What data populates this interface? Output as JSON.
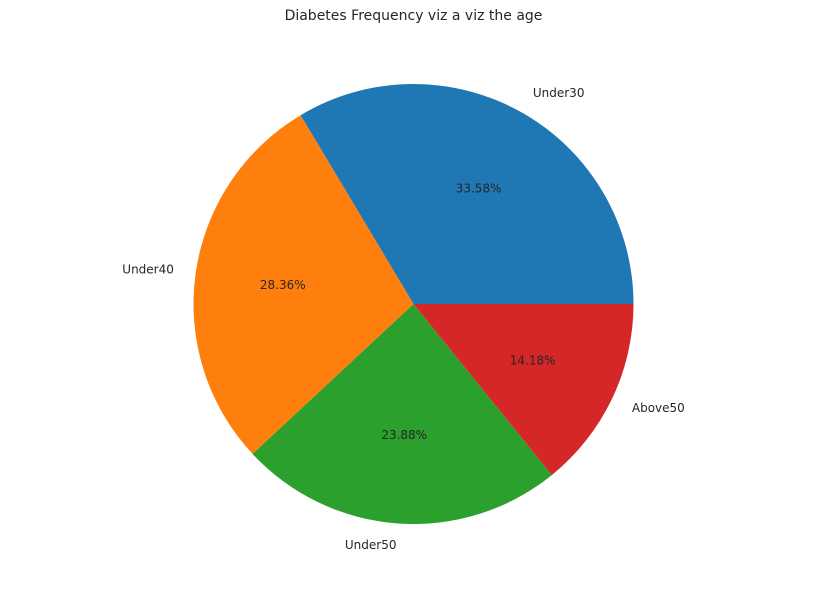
{
  "chart_data": {
    "type": "pie",
    "title": "Diabetes Frequency viz a viz the age",
    "categories": [
      "Under30",
      "Under40",
      "Under50",
      "Above50"
    ],
    "values": [
      33.58,
      28.36,
      23.88,
      14.18
    ],
    "labels": [
      "33.58%",
      "28.36%",
      "23.88%",
      "14.18%"
    ],
    "colors": [
      "#1f77b4",
      "#ff7f0e",
      "#2ca02c",
      "#d62728"
    ],
    "start_angle_deg": 0,
    "direction": "counterclockwise",
    "legend": "none"
  }
}
